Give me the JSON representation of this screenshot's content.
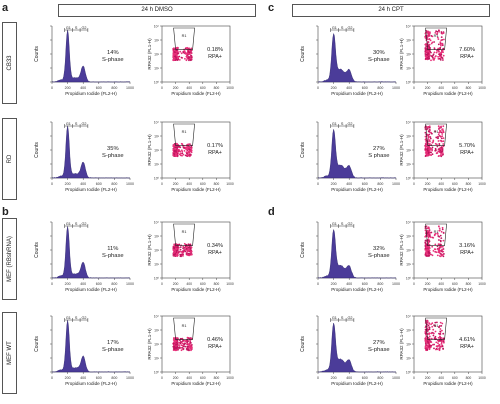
{
  "panel_letters": [
    "a",
    "b",
    "c",
    "d"
  ],
  "conditions": {
    "dmso": "24 h DMSO",
    "cpt": "24 h CPT"
  },
  "rows": {
    "a1": "CB33",
    "a2": "RD",
    "b1": "MEF (RBshRNA)",
    "b2": "MEF WT"
  },
  "hist_y_label": "Counts",
  "hist_x_label": "Propidium Iodide (FL2-H)",
  "scatter_y_label": "RPA32 (FL1-H)",
  "scatter_x_label": "Propidium Iodide (FL2-H)",
  "gate_labels": [
    "G1",
    "S",
    "G2"
  ],
  "scatter_gate_label": "R1",
  "hist_xticks": [
    "0",
    "200",
    "400",
    "600",
    "800",
    "1000"
  ],
  "scatter_xticks": [
    "0",
    "200",
    "400",
    "600",
    "800",
    "1000"
  ],
  "scatter_yticks": [
    "10⁰",
    "10¹",
    "10²",
    "10³",
    "10⁴"
  ],
  "cells": [
    {
      "id": "a1-dmso",
      "hist_value": "14%",
      "hist_label": "S-phase",
      "rpa_value": "0.18%",
      "rpa_label": "RPA+",
      "profile": "g1"
    },
    {
      "id": "a1-cpt",
      "hist_value": "30%",
      "hist_label": "S-phase",
      "rpa_value": "7.60%",
      "rpa_label": "RPA+",
      "profile": "s"
    },
    {
      "id": "a2-dmso",
      "hist_value": "35%",
      "hist_label": "S-phase",
      "rpa_value": "0.17%",
      "rpa_label": "RPA+",
      "profile": "g1"
    },
    {
      "id": "a2-cpt",
      "hist_value": "27%",
      "hist_label": "S phase",
      "rpa_value": "5.70%",
      "rpa_label": "RPA+",
      "profile": "s"
    },
    {
      "id": "b1-dmso",
      "hist_value": "11%",
      "hist_label": "S-phase",
      "rpa_value": "0.34%",
      "rpa_label": "RPA+",
      "profile": "g1"
    },
    {
      "id": "b1-cpt",
      "hist_value": "32%",
      "hist_label": "S-phase",
      "rpa_value": "3.16%",
      "rpa_label": "RPA+",
      "profile": "s"
    },
    {
      "id": "b2-dmso",
      "hist_value": "17%",
      "hist_label": "S-phase",
      "rpa_value": "0.46%",
      "rpa_label": "RPA+",
      "profile": "g1"
    },
    {
      "id": "b2-cpt",
      "hist_value": "27%",
      "hist_label": "S-phase",
      "rpa_value": "4.61%",
      "rpa_label": "RPA+",
      "profile": "s"
    }
  ],
  "colors": {
    "histogram": "#4b3c99",
    "scatter": "#e8317a",
    "scatter_dense": "#c0145e",
    "axis": "#444444"
  }
}
